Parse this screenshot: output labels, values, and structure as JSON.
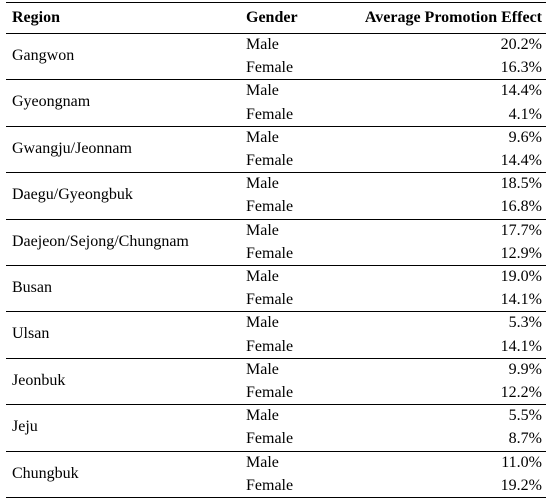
{
  "table": {
    "headers": [
      "Region",
      "Gender",
      "Average Promotion Effect"
    ],
    "rows": [
      {
        "region": "Gangwon",
        "entries": [
          {
            "gender": "Male",
            "value": "20.2%"
          },
          {
            "gender": "Female",
            "value": "16.3%"
          }
        ]
      },
      {
        "region": "Gyeongnam",
        "entries": [
          {
            "gender": "Male",
            "value": "14.4%"
          },
          {
            "gender": "Female",
            "value": "4.1%"
          }
        ]
      },
      {
        "region": "Gwangju/Jeonnam",
        "entries": [
          {
            "gender": "Male",
            "value": "9.6%"
          },
          {
            "gender": "Female",
            "value": "14.4%"
          }
        ]
      },
      {
        "region": "Daegu/Gyeongbuk",
        "entries": [
          {
            "gender": "Male",
            "value": "18.5%"
          },
          {
            "gender": "Female",
            "value": "16.8%"
          }
        ]
      },
      {
        "region": "Daejeon/Sejong/Chungnam",
        "entries": [
          {
            "gender": "Male",
            "value": "17.7%"
          },
          {
            "gender": "Female",
            "value": "12.9%"
          }
        ]
      },
      {
        "region": "Busan",
        "entries": [
          {
            "gender": "Male",
            "value": "19.0%"
          },
          {
            "gender": "Female",
            "value": "14.1%"
          }
        ]
      },
      {
        "region": "Ulsan",
        "entries": [
          {
            "gender": "Male",
            "value": "5.3%"
          },
          {
            "gender": "Female",
            "value": "14.1%"
          }
        ]
      },
      {
        "region": "Jeonbuk",
        "entries": [
          {
            "gender": "Male",
            "value": "9.9%"
          },
          {
            "gender": "Female",
            "value": "12.2%"
          }
        ]
      },
      {
        "region": "Jeju",
        "entries": [
          {
            "gender": "Male",
            "value": "5.5%"
          },
          {
            "gender": "Female",
            "value": "8.7%"
          }
        ]
      },
      {
        "region": "Chungbuk",
        "entries": [
          {
            "gender": "Male",
            "value": "11.0%"
          },
          {
            "gender": "Female",
            "value": "19.2%"
          }
        ]
      }
    ]
  }
}
